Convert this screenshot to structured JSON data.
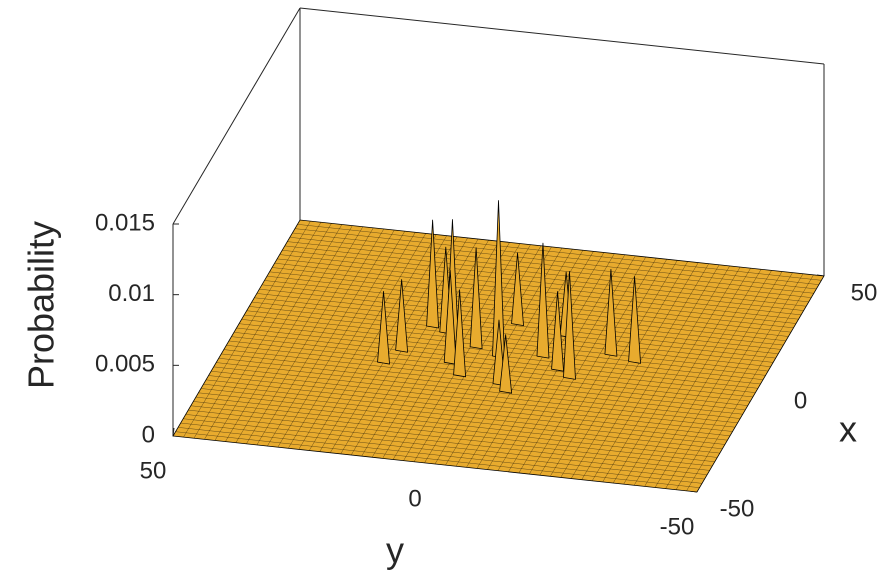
{
  "chart_data": {
    "type": "surface",
    "xlabel": "x",
    "ylabel": "y",
    "zlabel": "Probability",
    "xlim": [
      -50,
      50
    ],
    "ylim": [
      -50,
      50
    ],
    "zlim": [
      0,
      0.015
    ],
    "xticks": [
      -50,
      0,
      50
    ],
    "yticks": [
      -50,
      0,
      50
    ],
    "zticks": [
      0,
      0.005,
      0.01,
      0.015
    ],
    "color": "#e8ab2e",
    "edgecolor": "#000000",
    "x": [
      15,
      10,
      8,
      12,
      5,
      0,
      3,
      6,
      -2,
      -5,
      -8,
      -10,
      2,
      -12,
      -15,
      -6,
      4,
      -3
    ],
    "y": [
      0,
      15,
      12,
      -10,
      10,
      0,
      5,
      -20,
      18,
      8,
      20,
      5,
      -8,
      -3,
      -5,
      -15,
      -25,
      -12
    ],
    "values": [
      0.005,
      0.0075,
      0.006,
      0.0045,
      0.0085,
      0.011,
      0.007,
      0.006,
      0.005,
      0.0065,
      0.005,
      0.006,
      0.008,
      0.0045,
      0.004,
      0.0075,
      0.006,
      0.0055
    ]
  }
}
